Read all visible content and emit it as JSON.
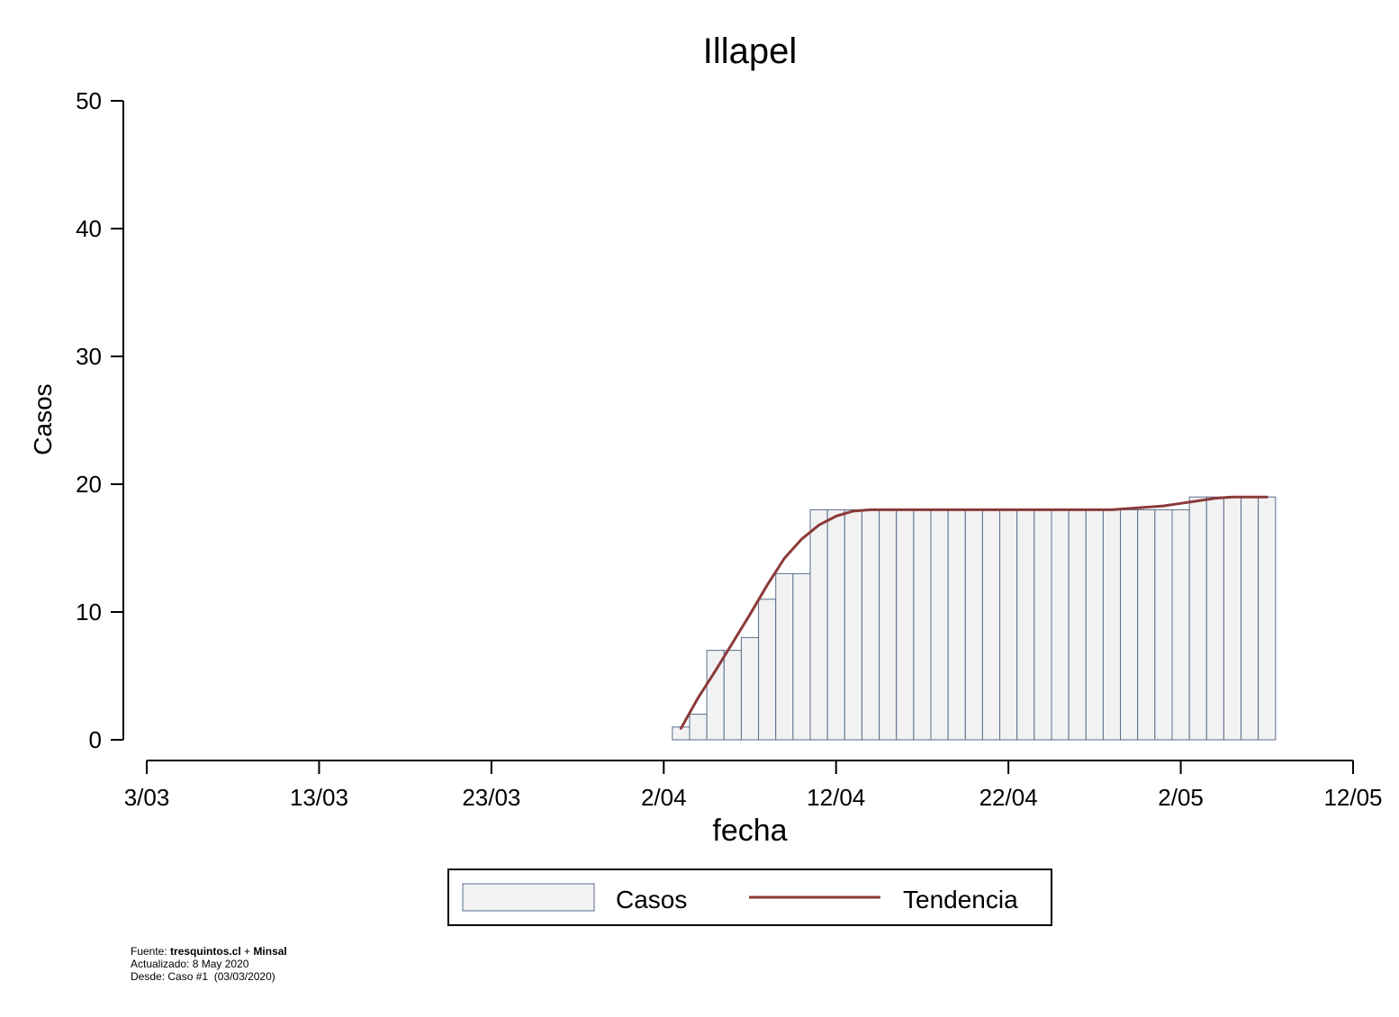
{
  "chart_data": {
    "type": "bar",
    "title": "Illapel",
    "xlabel": "fecha",
    "ylabel": "Casos",
    "ylim": [
      0,
      50
    ],
    "yticks": [
      0,
      10,
      20,
      30,
      40,
      50
    ],
    "xlim": [
      "2020-03-03",
      "2020-05-12"
    ],
    "xticks": [
      {
        "date": "2020-03-03",
        "label": "3/03"
      },
      {
        "date": "2020-03-13",
        "label": "13/03"
      },
      {
        "date": "2020-03-23",
        "label": "23/03"
      },
      {
        "date": "2020-04-02",
        "label": "2/04"
      },
      {
        "date": "2020-04-12",
        "label": "12/04"
      },
      {
        "date": "2020-04-22",
        "label": "22/04"
      },
      {
        "date": "2020-05-02",
        "label": "2/05"
      },
      {
        "date": "2020-05-12",
        "label": "12/05"
      }
    ],
    "grid": false,
    "legend_position": "bottom",
    "series": [
      {
        "name": "Casos",
        "kind": "bar",
        "color": "#f2f2f2",
        "edge_color": "#5a6e8c",
        "x": [
          "2020-04-03",
          "2020-04-04",
          "2020-04-05",
          "2020-04-06",
          "2020-04-07",
          "2020-04-08",
          "2020-04-09",
          "2020-04-10",
          "2020-04-11",
          "2020-04-12",
          "2020-04-13",
          "2020-04-14",
          "2020-04-15",
          "2020-04-16",
          "2020-04-17",
          "2020-04-18",
          "2020-04-19",
          "2020-04-20",
          "2020-04-21",
          "2020-04-22",
          "2020-04-23",
          "2020-04-24",
          "2020-04-25",
          "2020-04-26",
          "2020-04-27",
          "2020-04-28",
          "2020-04-29",
          "2020-04-30",
          "2020-05-01",
          "2020-05-02",
          "2020-05-03",
          "2020-05-04",
          "2020-05-05",
          "2020-05-06",
          "2020-05-07"
        ],
        "values": [
          1,
          2,
          7,
          7,
          8,
          11,
          13,
          13,
          18,
          18,
          18,
          18,
          18,
          18,
          18,
          18,
          18,
          18,
          18,
          18,
          18,
          18,
          18,
          18,
          18,
          18,
          18,
          18,
          18,
          18,
          19,
          19,
          19,
          19,
          19
        ]
      },
      {
        "name": "Tendencia",
        "kind": "line",
        "color": "#8b3a3a",
        "x": [
          "2020-04-03",
          "2020-04-04",
          "2020-04-05",
          "2020-04-06",
          "2020-04-07",
          "2020-04-08",
          "2020-04-09",
          "2020-04-10",
          "2020-04-11",
          "2020-04-12",
          "2020-04-13",
          "2020-04-14",
          "2020-04-15",
          "2020-04-16",
          "2020-04-17",
          "2020-04-18",
          "2020-04-19",
          "2020-04-20",
          "2020-04-21",
          "2020-04-22",
          "2020-04-23",
          "2020-04-24",
          "2020-04-25",
          "2020-04-26",
          "2020-04-27",
          "2020-04-28",
          "2020-04-29",
          "2020-04-30",
          "2020-05-01",
          "2020-05-02",
          "2020-05-03",
          "2020-05-04",
          "2020-05-05",
          "2020-05-06",
          "2020-05-07"
        ],
        "values": [
          0.9,
          3.3,
          5.4,
          7.6,
          9.8,
          12.1,
          14.2,
          15.7,
          16.8,
          17.5,
          17.9,
          18.0,
          18.0,
          18.0,
          18.0,
          18.0,
          18.0,
          18.0,
          18.0,
          18.0,
          18.0,
          18.0,
          18.0,
          18.0,
          18.0,
          18.0,
          18.1,
          18.2,
          18.3,
          18.5,
          18.7,
          18.9,
          19.0,
          19.0,
          19.0
        ]
      }
    ]
  },
  "footer": {
    "source_prefix": "Fuente: ",
    "source_site": "tresquintos.cl",
    "source_sep": " + ",
    "source_org": "Minsal",
    "updated": "Actualizado: 8 May 2020",
    "since": "Desde: Caso #1  (03/03/2020)"
  }
}
